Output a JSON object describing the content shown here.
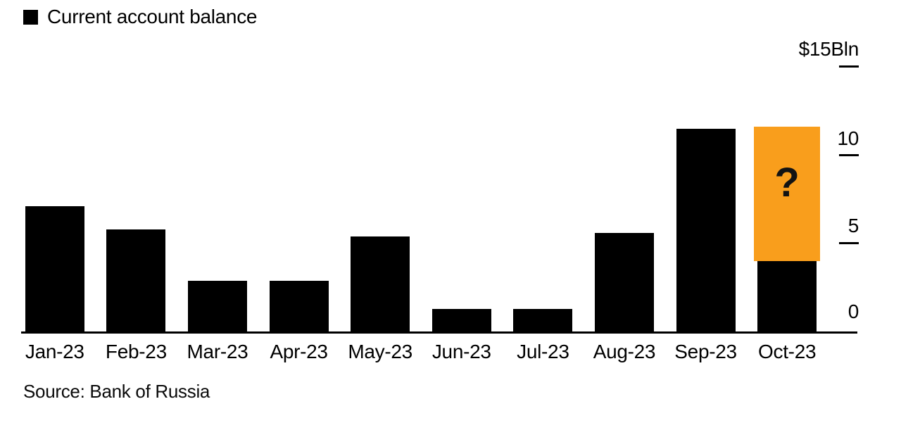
{
  "legend": {
    "label": "Current account balance",
    "swatch_color": "#000000"
  },
  "y_axis": {
    "unit_label": "$15Bln",
    "tick_labels": [
      "10",
      "5",
      "0"
    ]
  },
  "source": "Source: Bank of Russia",
  "chart_data": {
    "type": "bar",
    "title": "Current account balance",
    "categories": [
      "Jan-23",
      "Feb-23",
      "Mar-23",
      "Apr-23",
      "May-23",
      "Jun-23",
      "Jul-23",
      "Aug-23",
      "Sep-23",
      "Oct-23"
    ],
    "series": [
      {
        "name": "Current account balance",
        "color": "#000000",
        "values": [
          7.1,
          5.8,
          2.9,
          2.9,
          5.4,
          1.3,
          1.3,
          5.6,
          11.5,
          4.0
        ]
      }
    ],
    "overlay_bar": {
      "category": "Oct-23",
      "from": 4.0,
      "to": 11.6,
      "label": "?",
      "color": "#F99E1C",
      "note": "unknown/questioned value drawn as orange block with question mark"
    },
    "ylabel": "$Bln",
    "ylim": [
      0,
      15
    ],
    "yticks": [
      0,
      5,
      10,
      15
    ],
    "grid": false,
    "legend_position": "top-left",
    "axis_side": "right"
  }
}
